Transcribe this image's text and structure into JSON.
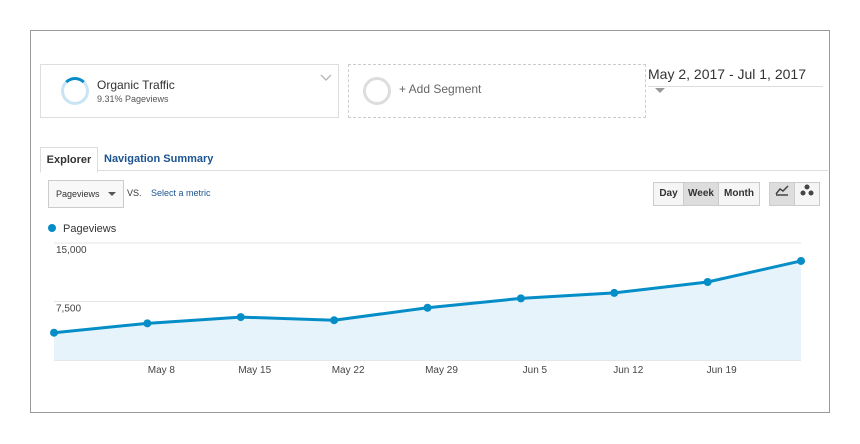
{
  "segments": [
    {
      "name": "Organic Traffic",
      "detail": "9.31% Pageviews"
    }
  ],
  "add_segment": "+ Add Segment",
  "date_range": "May 2, 2017 - Jul 1, 2017",
  "tabs": [
    "Explorer",
    "Navigation Summary"
  ],
  "metric": "Pageviews",
  "vs": "VS.",
  "select_metric": "Select a metric",
  "granularity": [
    "Day",
    "Week",
    "Month"
  ],
  "chart_data": {
    "type": "line",
    "categories": [
      null,
      "May 8",
      "May 15",
      "May 22",
      "May 29",
      "Jun 5",
      "Jun 12",
      "Jun 19",
      null
    ],
    "series": [
      {
        "name": "Pageviews",
        "color": "#058dc7",
        "values": [
          3500,
          4700,
          5500,
          5100,
          6700,
          7900,
          8600,
          10000,
          12700
        ]
      }
    ],
    "ylim": [
      0,
      15000
    ],
    "yticks": [
      {
        "value": 7500,
        "label": "7,500"
      },
      {
        "value": 15000,
        "label": "15,000"
      }
    ],
    "grid": true
  }
}
